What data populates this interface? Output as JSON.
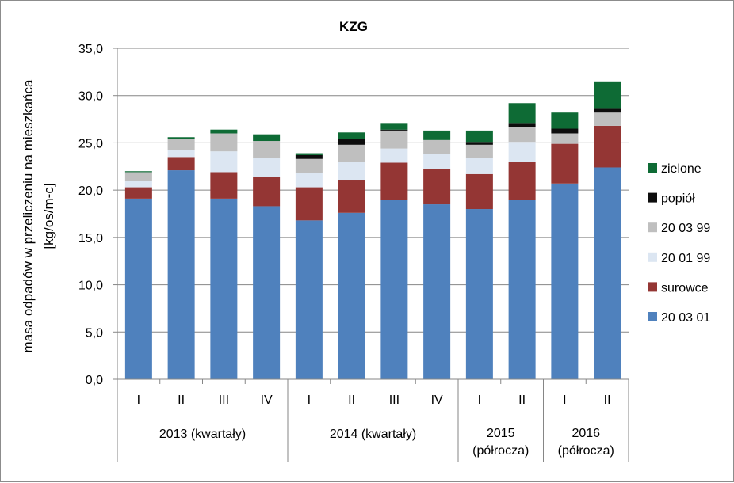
{
  "chart_data": {
    "type": "bar",
    "stacked": true,
    "title": "KZG",
    "ylabel_line1": "masa odpadów w przeliczeniu na mieszkańca",
    "ylabel_line2": "[kg/os/m-c]",
    "ylim": [
      0,
      35
    ],
    "yticks": [
      "0,0",
      "5,0",
      "10,0",
      "15,0",
      "20,0",
      "25,0",
      "30,0",
      "35,0"
    ],
    "grid": true,
    "legend_position": "right",
    "categories": [
      "I",
      "II",
      "III",
      "IV",
      "I",
      "II",
      "III",
      "IV",
      "I",
      "II",
      "I",
      "II"
    ],
    "groups": [
      {
        "label_lines": [
          "2013 (kwartały)"
        ],
        "count": 4
      },
      {
        "label_lines": [
          "2014 (kwartały)"
        ],
        "count": 4
      },
      {
        "label_lines": [
          "2015",
          "(półrocza)"
        ],
        "count": 2
      },
      {
        "label_lines": [
          "2016",
          "(półrocza)"
        ],
        "count": 2
      }
    ],
    "series": [
      {
        "name": "20 03 01",
        "color": "#4f81bd",
        "values": [
          19.1,
          22.1,
          19.1,
          18.3,
          16.8,
          17.6,
          19.0,
          18.5,
          18.0,
          19.0,
          20.7,
          22.4
        ]
      },
      {
        "name": "surowce",
        "color": "#943634",
        "values": [
          1.2,
          1.4,
          2.8,
          3.1,
          3.5,
          3.5,
          3.9,
          3.7,
          3.7,
          4.0,
          4.2,
          4.4
        ]
      },
      {
        "name": "20 01 99",
        "color": "#dce6f2",
        "values": [
          0.7,
          0.7,
          2.2,
          2.0,
          1.5,
          1.9,
          1.5,
          1.6,
          1.7,
          2.1,
          0.0,
          0.0
        ]
      },
      {
        "name": "20 03 99",
        "color": "#bfbfbf",
        "values": [
          0.9,
          1.2,
          1.9,
          1.8,
          1.5,
          1.8,
          1.9,
          1.5,
          1.4,
          1.6,
          1.1,
          1.4
        ]
      },
      {
        "name": "popiół",
        "color": "#0d0d0d",
        "values": [
          0.0,
          0.0,
          0.0,
          0.0,
          0.4,
          0.6,
          0.1,
          0.0,
          0.3,
          0.4,
          0.5,
          0.4
        ]
      },
      {
        "name": "zielone",
        "color": "#0e6b35",
        "values": [
          0.1,
          0.2,
          0.4,
          0.7,
          0.2,
          0.7,
          0.7,
          1.0,
          1.2,
          2.1,
          1.7,
          2.9
        ]
      }
    ]
  }
}
